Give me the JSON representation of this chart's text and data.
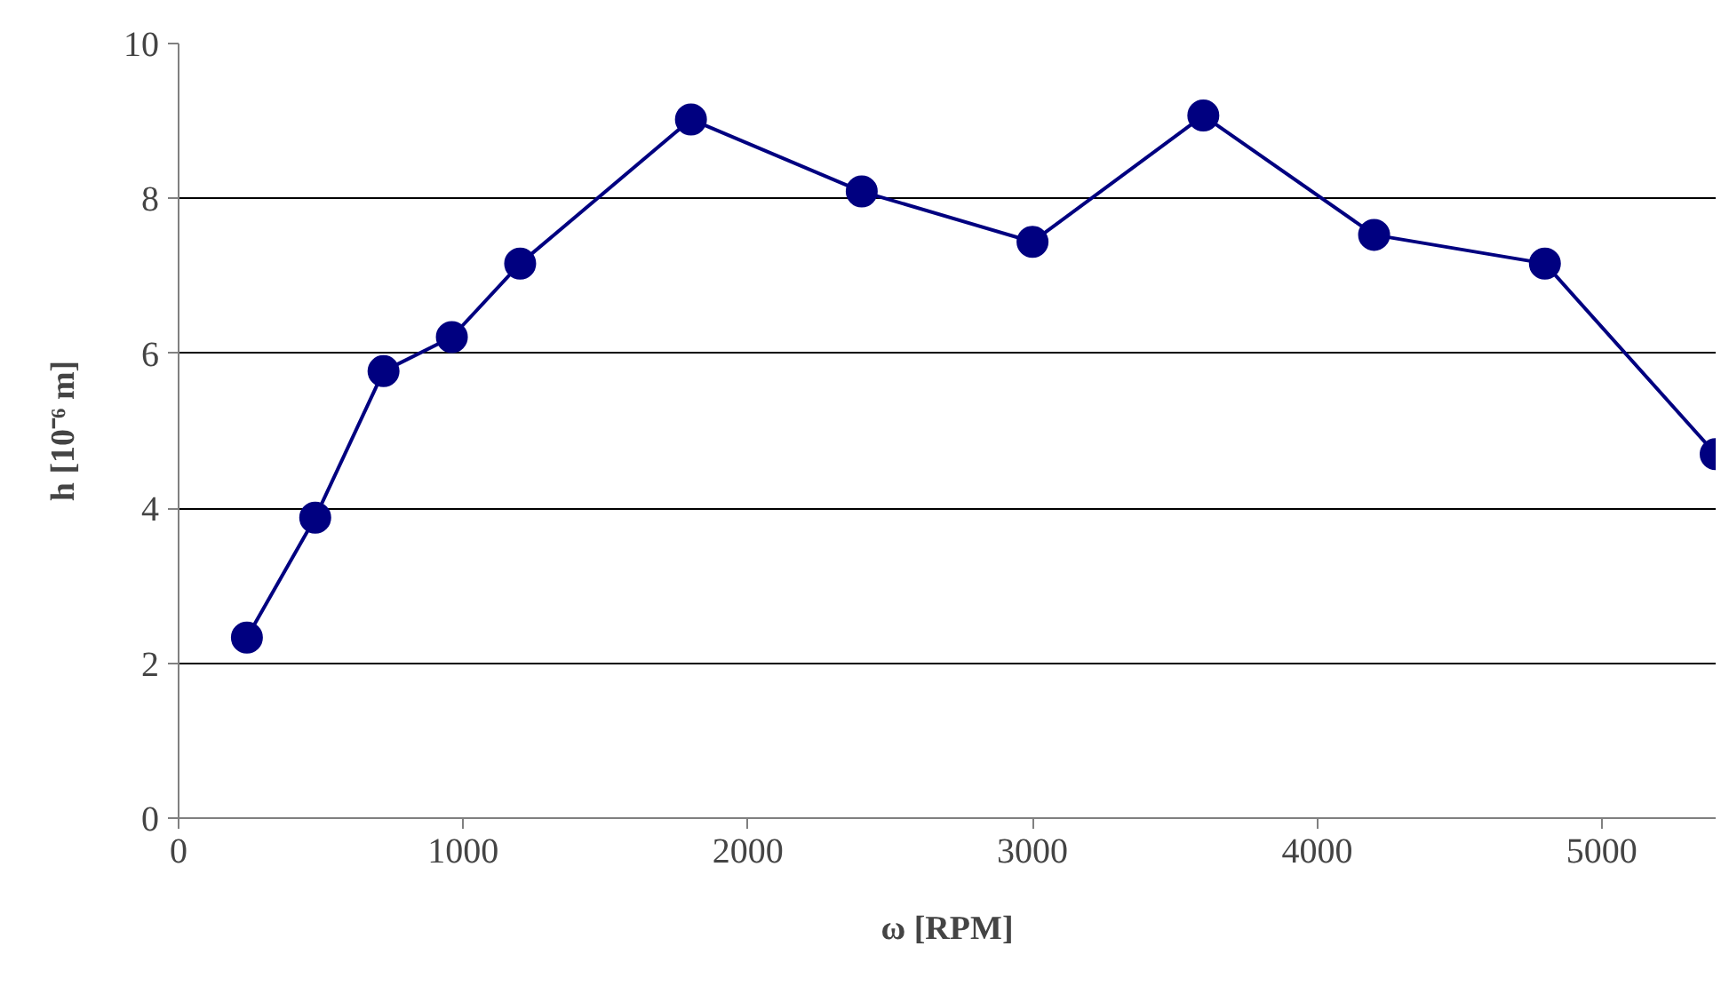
{
  "chart_data": {
    "type": "line",
    "xlabel": "ω [RPM]",
    "ylabel": "h [10⁻⁶ m]",
    "x": [
      240,
      480,
      720,
      960,
      1200,
      1800,
      2400,
      3000,
      3600,
      4200,
      4800,
      5400
    ],
    "series": [
      {
        "color": "#000080",
        "values": [
          2.33,
          3.88,
          5.77,
          6.21,
          7.16,
          9.02,
          8.09,
          7.44,
          9.07,
          7.53,
          7.16,
          4.7
        ]
      }
    ],
    "xlim": [
      0,
      5400
    ],
    "ylim": [
      0,
      10
    ],
    "xticks": [
      0,
      1000,
      2000,
      3000,
      4000,
      5000
    ],
    "yticks": [
      0,
      2,
      4,
      6,
      8,
      10
    ],
    "grid": "y",
    "marker": "circle"
  }
}
